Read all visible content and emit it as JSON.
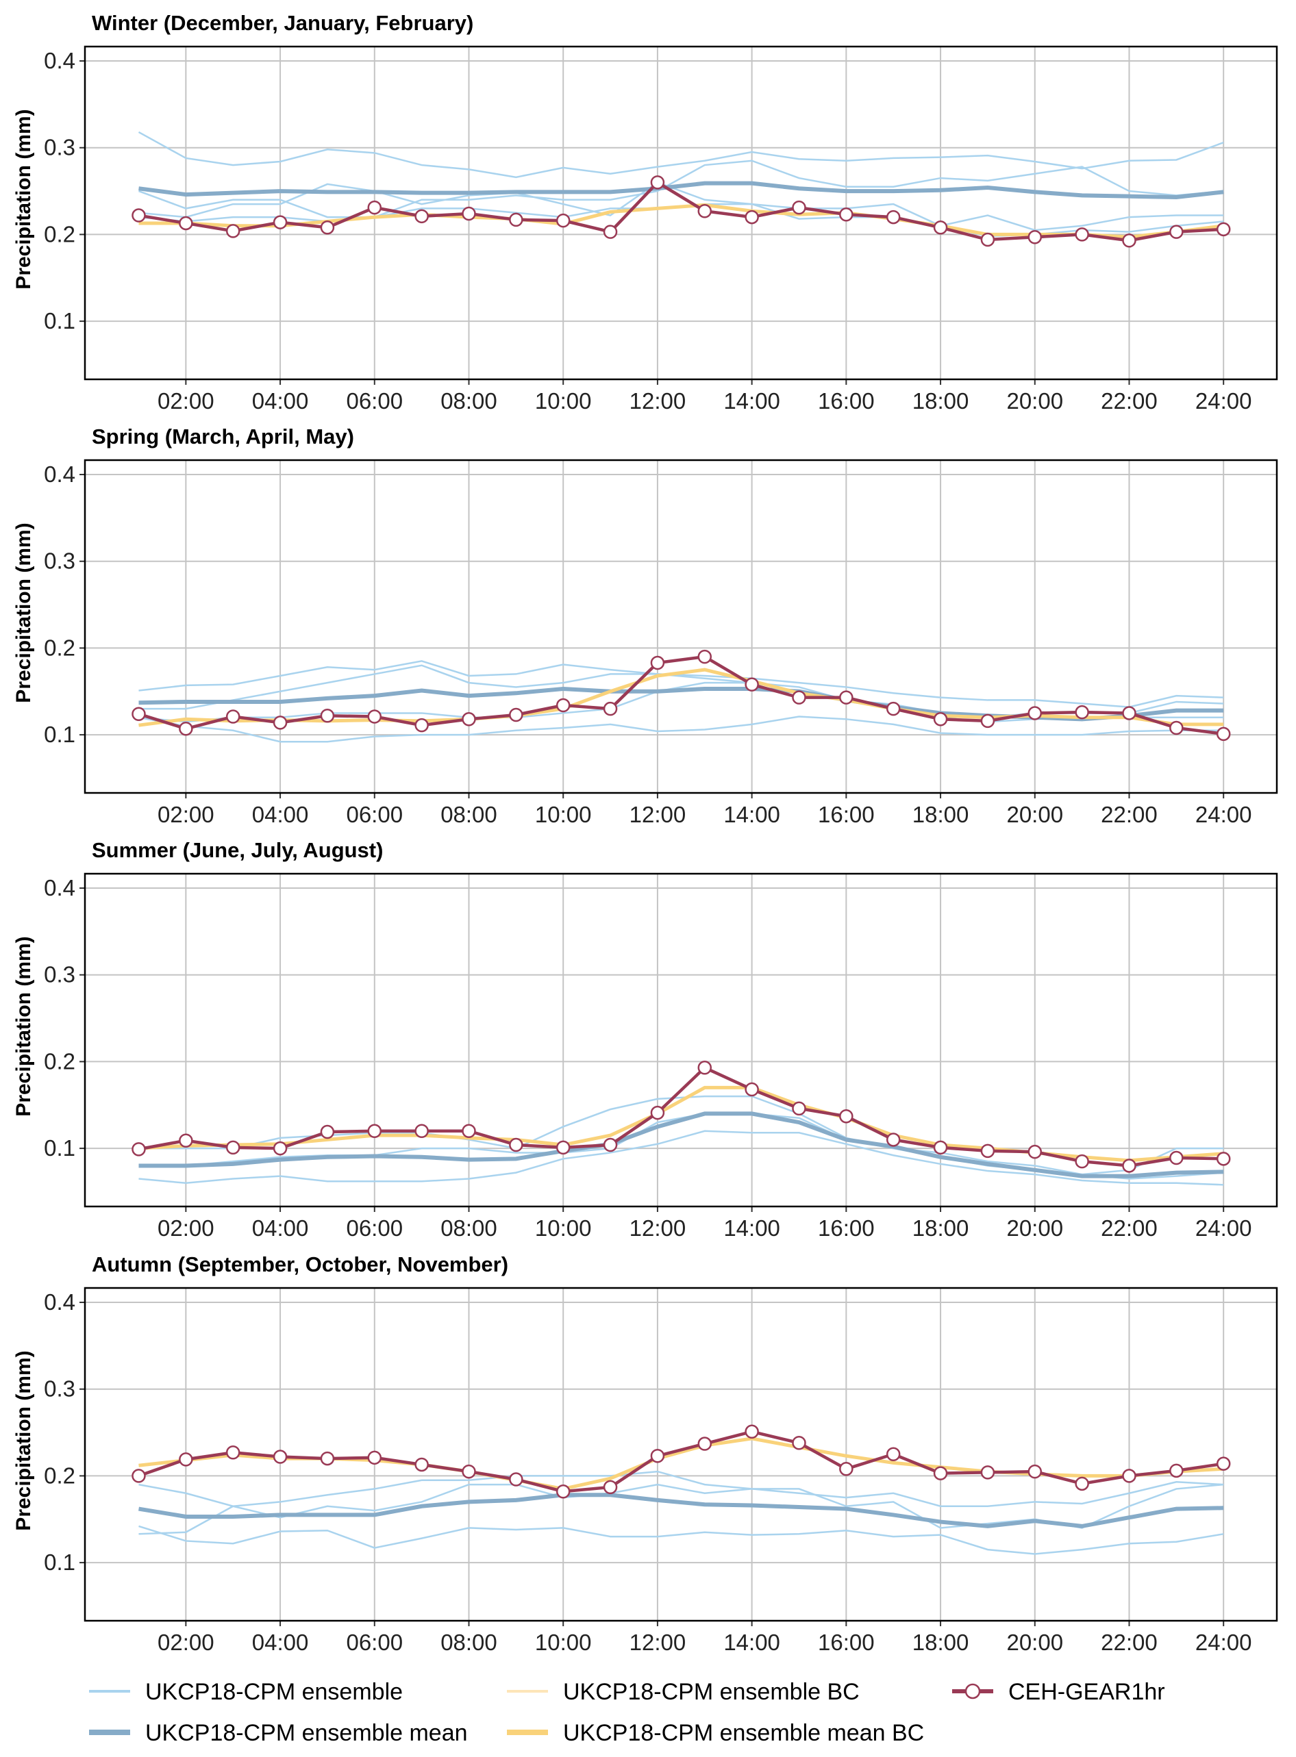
{
  "chart_data": [
    {
      "type": "line",
      "title": "Winter (December, January, February)",
      "ylabel": "Precipitation (mm)",
      "xlabel": "",
      "x": [
        1,
        2,
        3,
        4,
        5,
        6,
        7,
        8,
        9,
        10,
        11,
        12,
        13,
        14,
        15,
        16,
        17,
        18,
        19,
        20,
        21,
        22,
        23,
        24
      ],
      "ensemble": [
        [
          0.318,
          0.288,
          0.28,
          0.284,
          0.298,
          0.294,
          0.28,
          0.275,
          0.266,
          0.277,
          0.27,
          0.278,
          0.285,
          0.295,
          0.287,
          0.285,
          0.288,
          0.289,
          0.291,
          0.284,
          0.276,
          0.285,
          0.286,
          0.306
        ],
        [
          0.25,
          0.23,
          0.24,
          0.24,
          0.22,
          0.22,
          0.24,
          0.24,
          0.245,
          0.24,
          0.24,
          0.25,
          0.28,
          0.285,
          0.265,
          0.255,
          0.255,
          0.265,
          0.262,
          0.27,
          0.278,
          0.25,
          0.245,
          0.25
        ],
        [
          0.225,
          0.22,
          0.235,
          0.235,
          0.258,
          0.25,
          0.235,
          0.245,
          0.248,
          0.235,
          0.222,
          0.26,
          0.24,
          0.235,
          0.218,
          0.22,
          0.22,
          0.21,
          0.222,
          0.205,
          0.21,
          0.22,
          0.222,
          0.222
        ],
        [
          0.22,
          0.215,
          0.22,
          0.22,
          0.215,
          0.22,
          0.23,
          0.23,
          0.225,
          0.22,
          0.23,
          0.23,
          0.235,
          0.235,
          0.23,
          0.23,
          0.235,
          0.21,
          0.198,
          0.2,
          0.205,
          0.203,
          0.21,
          0.215
        ]
      ],
      "ensemble_mean": [
        0.253,
        0.246,
        0.248,
        0.25,
        0.249,
        0.249,
        0.248,
        0.248,
        0.249,
        0.249,
        0.249,
        0.253,
        0.259,
        0.259,
        0.253,
        0.25,
        0.25,
        0.251,
        0.254,
        0.249,
        0.245,
        0.244,
        0.243,
        0.249
      ],
      "ensemble_mean_bc": [
        0.213,
        0.213,
        0.21,
        0.21,
        0.215,
        0.22,
        0.223,
        0.22,
        0.218,
        0.212,
        0.226,
        0.23,
        0.234,
        0.227,
        0.223,
        0.225,
        0.218,
        0.21,
        0.2,
        0.2,
        0.2,
        0.197,
        0.203,
        0.21
      ],
      "ceh_gear1hr": [
        0.222,
        0.213,
        0.204,
        0.214,
        0.208,
        0.231,
        0.221,
        0.224,
        0.217,
        0.216,
        0.203,
        0.26,
        0.227,
        0.22,
        0.231,
        0.223,
        0.22,
        0.208,
        0.194,
        0.197,
        0.2,
        0.193,
        0.203,
        0.206
      ]
    },
    {
      "type": "line",
      "title": "Spring (March, April, May)",
      "ylabel": "Precipitation (mm)",
      "xlabel": "",
      "x": [
        1,
        2,
        3,
        4,
        5,
        6,
        7,
        8,
        9,
        10,
        11,
        12,
        13,
        14,
        15,
        16,
        17,
        18,
        19,
        20,
        21,
        22,
        23,
        24
      ],
      "ensemble": [
        [
          0.151,
          0.157,
          0.158,
          0.168,
          0.178,
          0.175,
          0.185,
          0.168,
          0.17,
          0.181,
          0.175,
          0.17,
          0.168,
          0.165,
          0.16,
          0.155,
          0.148,
          0.143,
          0.14,
          0.14,
          0.136,
          0.132,
          0.145,
          0.143
        ],
        [
          0.13,
          0.13,
          0.14,
          0.15,
          0.16,
          0.17,
          0.18,
          0.16,
          0.155,
          0.16,
          0.17,
          0.17,
          0.165,
          0.16,
          0.155,
          0.14,
          0.135,
          0.125,
          0.12,
          0.125,
          0.125,
          0.125,
          0.138,
          0.136
        ],
        [
          0.12,
          0.11,
          0.105,
          0.092,
          0.092,
          0.098,
          0.1,
          0.1,
          0.105,
          0.108,
          0.112,
          0.104,
          0.106,
          0.112,
          0.121,
          0.118,
          0.112,
          0.102,
          0.1,
          0.1,
          0.1,
          0.104,
          0.105,
          0.105
        ],
        [
          0.12,
          0.115,
          0.12,
          0.12,
          0.125,
          0.125,
          0.125,
          0.12,
          0.12,
          0.125,
          0.13,
          0.15,
          0.16,
          0.16,
          0.15,
          0.14,
          0.13,
          0.12,
          0.115,
          0.118,
          0.12,
          0.12,
          0.12,
          0.12
        ]
      ],
      "ensemble_mean": [
        0.137,
        0.138,
        0.138,
        0.138,
        0.142,
        0.145,
        0.151,
        0.145,
        0.148,
        0.153,
        0.15,
        0.15,
        0.153,
        0.153,
        0.15,
        0.14,
        0.132,
        0.125,
        0.122,
        0.12,
        0.118,
        0.122,
        0.128,
        0.128
      ],
      "ensemble_mean_bc": [
        0.111,
        0.118,
        0.116,
        0.117,
        0.116,
        0.117,
        0.116,
        0.118,
        0.122,
        0.13,
        0.15,
        0.168,
        0.175,
        0.162,
        0.148,
        0.14,
        0.13,
        0.122,
        0.12,
        0.122,
        0.12,
        0.12,
        0.112,
        0.112
      ],
      "ceh_gear1hr": [
        0.124,
        0.107,
        0.121,
        0.114,
        0.122,
        0.121,
        0.111,
        0.118,
        0.123,
        0.134,
        0.13,
        0.183,
        0.19,
        0.158,
        0.143,
        0.143,
        0.13,
        0.118,
        0.116,
        0.125,
        0.126,
        0.125,
        0.108,
        0.101
      ]
    },
    {
      "type": "line",
      "title": "Summer (June, July, August)",
      "ylabel": "Precipitation (mm)",
      "xlabel": "",
      "x": [
        1,
        2,
        3,
        4,
        5,
        6,
        7,
        8,
        9,
        10,
        11,
        12,
        13,
        14,
        15,
        16,
        17,
        18,
        19,
        20,
        21,
        22,
        23,
        24
      ],
      "ensemble": [
        [
          0.1,
          0.1,
          0.1,
          0.112,
          0.115,
          0.118,
          0.118,
          0.11,
          0.1,
          0.125,
          0.145,
          0.157,
          0.16,
          0.16,
          0.14,
          0.112,
          0.1,
          0.09,
          0.08,
          0.075,
          0.07,
          0.075,
          0.1,
          0.1
        ],
        [
          0.065,
          0.06,
          0.065,
          0.068,
          0.062,
          0.062,
          0.062,
          0.065,
          0.072,
          0.088,
          0.095,
          0.105,
          0.12,
          0.118,
          0.118,
          0.105,
          0.092,
          0.082,
          0.074,
          0.07,
          0.063,
          0.06,
          0.06,
          0.058
        ],
        [
          0.08,
          0.08,
          0.085,
          0.09,
          0.092,
          0.092,
          0.1,
          0.1,
          0.095,
          0.095,
          0.1,
          0.13,
          0.14,
          0.14,
          0.135,
          0.11,
          0.1,
          0.095,
          0.085,
          0.08,
          0.07,
          0.065,
          0.068,
          0.072
        ]
      ],
      "ensemble_mean": [
        0.08,
        0.08,
        0.082,
        0.087,
        0.09,
        0.091,
        0.09,
        0.087,
        0.088,
        0.097,
        0.105,
        0.125,
        0.14,
        0.14,
        0.13,
        0.11,
        0.102,
        0.09,
        0.082,
        0.075,
        0.068,
        0.068,
        0.072,
        0.073
      ],
      "ensemble_mean_bc": [
        0.1,
        0.103,
        0.104,
        0.105,
        0.11,
        0.115,
        0.115,
        0.112,
        0.11,
        0.104,
        0.115,
        0.14,
        0.17,
        0.17,
        0.15,
        0.135,
        0.115,
        0.104,
        0.1,
        0.095,
        0.09,
        0.086,
        0.09,
        0.094
      ],
      "ceh_gear1hr": [
        0.099,
        0.109,
        0.101,
        0.1,
        0.119,
        0.12,
        0.12,
        0.12,
        0.104,
        0.101,
        0.104,
        0.141,
        0.193,
        0.168,
        0.146,
        0.137,
        0.11,
        0.101,
        0.097,
        0.096,
        0.085,
        0.08,
        0.089,
        0.088
      ]
    },
    {
      "type": "line",
      "title": "Autumn (September, October, November)",
      "ylabel": "Precipitation (mm)",
      "xlabel": "",
      "x": [
        1,
        2,
        3,
        4,
        5,
        6,
        7,
        8,
        9,
        10,
        11,
        12,
        13,
        14,
        15,
        16,
        17,
        18,
        19,
        20,
        21,
        22,
        23,
        24
      ],
      "ensemble": [
        [
          0.19,
          0.18,
          0.165,
          0.17,
          0.178,
          0.185,
          0.195,
          0.195,
          0.2,
          0.2,
          0.2,
          0.205,
          0.19,
          0.185,
          0.18,
          0.175,
          0.18,
          0.165,
          0.165,
          0.17,
          0.168,
          0.18,
          0.193,
          0.19
        ],
        [
          0.142,
          0.125,
          0.122,
          0.136,
          0.137,
          0.117,
          0.128,
          0.14,
          0.138,
          0.14,
          0.13,
          0.13,
          0.135,
          0.132,
          0.133,
          0.137,
          0.13,
          0.132,
          0.115,
          0.11,
          0.115,
          0.122,
          0.124,
          0.133
        ],
        [
          0.133,
          0.135,
          0.165,
          0.152,
          0.165,
          0.16,
          0.17,
          0.19,
          0.19,
          0.175,
          0.18,
          0.19,
          0.18,
          0.185,
          0.185,
          0.165,
          0.17,
          0.14,
          0.145,
          0.15,
          0.14,
          0.165,
          0.185,
          0.19
        ]
      ],
      "ensemble_mean": [
        0.162,
        0.153,
        0.153,
        0.155,
        0.155,
        0.155,
        0.165,
        0.17,
        0.172,
        0.178,
        0.178,
        0.172,
        0.167,
        0.166,
        0.164,
        0.162,
        0.155,
        0.147,
        0.142,
        0.148,
        0.142,
        0.152,
        0.162,
        0.163
      ],
      "ensemble_mean_bc": [
        0.212,
        0.218,
        0.224,
        0.22,
        0.22,
        0.218,
        0.213,
        0.205,
        0.195,
        0.185,
        0.197,
        0.22,
        0.235,
        0.243,
        0.233,
        0.223,
        0.215,
        0.21,
        0.205,
        0.202,
        0.2,
        0.2,
        0.205,
        0.208
      ],
      "ceh_gear1hr": [
        0.2,
        0.219,
        0.227,
        0.222,
        0.22,
        0.221,
        0.213,
        0.205,
        0.196,
        0.182,
        0.187,
        0.223,
        0.237,
        0.251,
        0.238,
        0.208,
        0.225,
        0.203,
        0.204,
        0.205,
        0.191,
        0.2,
        0.206,
        0.214
      ]
    }
  ],
  "axes": {
    "ylim": [
      0.033,
      0.4166
    ],
    "xlim": [
      -0.14,
      25.13
    ],
    "yticks": [
      0.1,
      0.2,
      0.3,
      0.4
    ],
    "ytick_labels": [
      "0.1",
      "0.2",
      "0.3",
      "0.4"
    ],
    "xticks": [
      2,
      4,
      6,
      8,
      10,
      12,
      14,
      16,
      18,
      20,
      22,
      24
    ],
    "xtick_labels": [
      "02:00",
      "04:00",
      "06:00",
      "08:00",
      "10:00",
      "12:00",
      "14:00",
      "16:00",
      "18:00",
      "20:00",
      "22:00",
      "24:00"
    ],
    "grid": true
  },
  "legend": {
    "placement": "bottom",
    "items": [
      {
        "key": "ensemble",
        "label": "UKCP18-CPM ensemble"
      },
      {
        "key": "ensemble_bc",
        "label": "UKCP18-CPM ensemble BC"
      },
      {
        "key": "ceh",
        "label": "CEH-GEAR1hr"
      },
      {
        "key": "mean",
        "label": "UKCP18-CPM ensemble mean"
      },
      {
        "key": "mean_bc",
        "label": "UKCP18-CPM ensemble mean BC"
      }
    ]
  },
  "colors": {
    "ensemble": "#a9d3ee",
    "ensemble_bc": "#fde5b8",
    "mean": "#86abc8",
    "mean_bc": "#f9d27a",
    "ceh": "#9a3a55",
    "grid": "#c4c4c4"
  }
}
